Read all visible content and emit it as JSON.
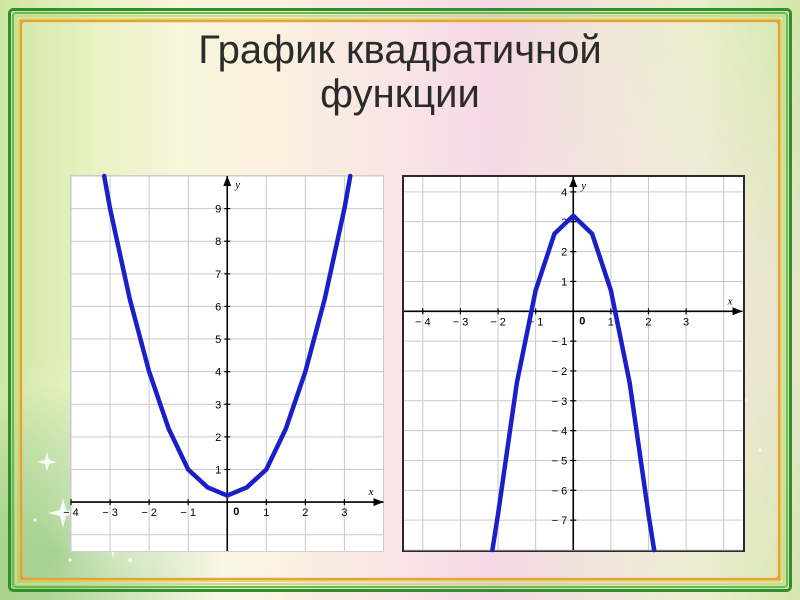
{
  "title_line1": "График квадратичной",
  "title_line2": "функции",
  "title_fontsize": 40,
  "title_color": "#2b2b2b",
  "frame": {
    "outer_colors": [
      "#2f8f2e",
      "#6fb84e",
      "#c1e08a",
      "#e6c74a",
      "#d98b2e"
    ],
    "outer_width": 3,
    "inner_color": "#e2a43a",
    "inner_width": 2
  },
  "background": {
    "gradient_stops": [
      "#cfe7a5",
      "#e9f2c2",
      "#f7f5da",
      "#fbf1de",
      "#f9e2e7",
      "#f5d7e4",
      "#efe6d8",
      "#e7f0c8",
      "#cfe7a5"
    ],
    "sparkle_color": "#ffffff"
  },
  "chart_left": {
    "type": "line",
    "curve": "parabola_up",
    "curve_color": "#1b1fc9",
    "curve_width": 4.5,
    "background_color": "#ffffff",
    "grid_color": "#c9c9c9",
    "axis_color": "#000000",
    "xlim": [
      -4,
      4
    ],
    "ylim": [
      -1.5,
      10
    ],
    "xtick_step": 1,
    "ytick_step": 1,
    "xticks_labeled": [
      -4,
      -3,
      -2,
      -1,
      1,
      2,
      3
    ],
    "yticks_labeled": [
      1,
      2,
      3,
      4,
      5,
      6,
      7,
      8,
      9
    ],
    "x_axis_label": "x",
    "y_axis_label": "y",
    "origin_label": "0",
    "vertex": [
      0,
      0.2
    ],
    "a_estimate": 1.0,
    "points": [
      [
        -3.15,
        10
      ],
      [
        -3,
        9.0
      ],
      [
        -2.5,
        6.25
      ],
      [
        -2,
        4.0
      ],
      [
        -1.5,
        2.25
      ],
      [
        -1,
        1.0
      ],
      [
        -0.5,
        0.45
      ],
      [
        0,
        0.2
      ],
      [
        0.5,
        0.45
      ],
      [
        1,
        1.0
      ],
      [
        1.5,
        2.25
      ],
      [
        2,
        4.0
      ],
      [
        2.5,
        6.25
      ],
      [
        3,
        9.0
      ],
      [
        3.15,
        10
      ]
    ]
  },
  "chart_right": {
    "type": "line",
    "curve": "parabola_down",
    "curve_color": "#1b1fc9",
    "curve_width": 4.5,
    "background_color": "#ffffff",
    "grid_color": "#c9c9c9",
    "axis_color": "#000000",
    "xlim": [
      -4.5,
      4.5
    ],
    "ylim": [
      -8,
      4.5
    ],
    "xtick_step": 1,
    "ytick_step": 1,
    "xticks_labeled": [
      -4,
      -3,
      -2,
      -1,
      1,
      2,
      3
    ],
    "yticks_labeled": [
      -7,
      -6,
      -5,
      -4,
      -3,
      -2,
      -1,
      1,
      2,
      3,
      4
    ],
    "x_axis_label": "x",
    "y_axis_label": "y",
    "origin_label": "0",
    "vertex": [
      0,
      3.2
    ],
    "a_estimate": -2.5,
    "points": [
      [
        -2.15,
        -8
      ],
      [
        -2,
        -6.8
      ],
      [
        -1.5,
        -2.4
      ],
      [
        -1,
        0.7
      ],
      [
        -0.5,
        2.6
      ],
      [
        0,
        3.2
      ],
      [
        0.5,
        2.6
      ],
      [
        1,
        0.7
      ],
      [
        1.5,
        -2.4
      ],
      [
        2,
        -6.8
      ],
      [
        2.15,
        -8
      ]
    ]
  }
}
